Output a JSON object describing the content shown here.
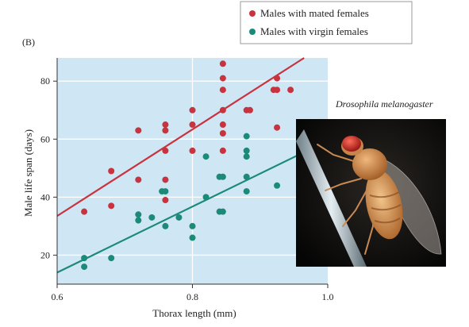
{
  "chart_data": {
    "type": "scatter",
    "panel_label": "(B)",
    "xlabel": "Thorax length (mm)",
    "ylabel": "Male life span (days)",
    "xlim": [
      0.6,
      1.0
    ],
    "ylim": [
      10,
      88
    ],
    "x_ticks": [
      0.6,
      0.8,
      1.0
    ],
    "x_tick_labels": [
      "0.6",
      "0.8",
      "1.0"
    ],
    "y_ticks": [
      20,
      40,
      60,
      80
    ],
    "y_tick_labels": [
      "20",
      "40",
      "60",
      "80"
    ],
    "grid": true,
    "background_color": "#cfe6f5",
    "legend_position": "top-right, outside plot",
    "series": [
      {
        "name": "Males with mated females",
        "color": "#c8333e",
        "points": [
          [
            0.64,
            35
          ],
          [
            0.68,
            37
          ],
          [
            0.68,
            49
          ],
          [
            0.72,
            63
          ],
          [
            0.72,
            46
          ],
          [
            0.76,
            65
          ],
          [
            0.76,
            63
          ],
          [
            0.76,
            56
          ],
          [
            0.76,
            46
          ],
          [
            0.76,
            39
          ],
          [
            0.8,
            70
          ],
          [
            0.8,
            65
          ],
          [
            0.8,
            56
          ],
          [
            0.845,
            86
          ],
          [
            0.845,
            81
          ],
          [
            0.845,
            77
          ],
          [
            0.845,
            70
          ],
          [
            0.845,
            65
          ],
          [
            0.845,
            62
          ],
          [
            0.845,
            56
          ],
          [
            0.88,
            70
          ],
          [
            0.885,
            70
          ],
          [
            0.92,
            77
          ],
          [
            0.925,
            81
          ],
          [
            0.925,
            77
          ],
          [
            0.925,
            64
          ],
          [
            0.945,
            77
          ]
        ],
        "trend": {
          "x": [
            0.6,
            0.965
          ],
          "y": [
            33.5,
            88
          ]
        }
      },
      {
        "name": "Males with virgin females",
        "color": "#1b8b78",
        "points": [
          [
            0.64,
            19
          ],
          [
            0.64,
            16
          ],
          [
            0.68,
            19
          ],
          [
            0.72,
            34
          ],
          [
            0.72,
            32
          ],
          [
            0.74,
            33
          ],
          [
            0.755,
            42
          ],
          [
            0.76,
            42
          ],
          [
            0.76,
            30
          ],
          [
            0.78,
            33
          ],
          [
            0.8,
            30
          ],
          [
            0.8,
            26
          ],
          [
            0.82,
            54
          ],
          [
            0.82,
            40
          ],
          [
            0.84,
            47
          ],
          [
            0.845,
            47
          ],
          [
            0.84,
            35
          ],
          [
            0.845,
            35
          ],
          [
            0.88,
            61
          ],
          [
            0.88,
            56
          ],
          [
            0.88,
            54
          ],
          [
            0.88,
            47
          ],
          [
            0.88,
            42
          ],
          [
            0.925,
            44
          ]
        ],
        "trend": {
          "x": [
            0.6,
            0.965
          ],
          "y": [
            14,
            55.5
          ]
        }
      }
    ]
  },
  "photo": {
    "caption": "Drosophila melanogaster",
    "subject": "fruit-fly-photo"
  }
}
